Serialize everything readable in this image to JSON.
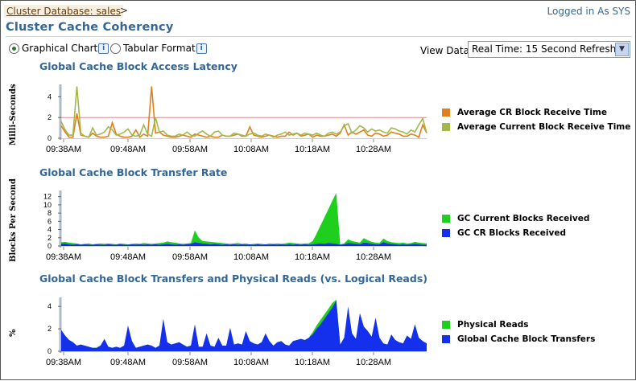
{
  "breadcrumb": "Cluster Database: sales",
  "breadcrumb_sep": ">",
  "logged_in": "Logged in As SYS",
  "page_title": "Cluster Cache Coherency",
  "view_mode": {
    "graphical_label": "Graphical Chart",
    "tabular_label": "Tabular Format",
    "selected": "graphical"
  },
  "view_data": {
    "label": "View Data",
    "value": "Real Time: 15 Second Refresh"
  },
  "colors": {
    "orange": "#e07f1c",
    "olive": "#a2b84a",
    "green": "#1ecf1e",
    "blue": "#1430ec",
    "ref_line": "#e08a8a"
  },
  "x_ticks": [
    "09:38AM",
    "09:48AM",
    "09:58AM",
    "10:08AM",
    "10:18AM",
    "10:28AM"
  ],
  "chart_data": [
    {
      "type": "line",
      "title": "Global Cache Block Access Latency",
      "ylabel": "Milli-Seconds",
      "yticks": [
        0,
        2,
        4
      ],
      "ylim": [
        0,
        5.2
      ],
      "reference_line": 2,
      "legend": "right",
      "series": [
        {
          "name": "Average CR Block Receive Time",
          "color": "orange",
          "values": [
            1.2,
            0.6,
            0.1,
            0.1,
            2.4,
            0.3,
            0.2,
            0.1,
            0.5,
            0.2,
            0.1,
            0.1,
            0.2,
            1.5,
            0.4,
            0.2,
            0.1,
            0.1,
            0.2,
            0.8,
            0.1,
            0.4,
            0.2,
            5.0,
            0.5,
            0.6,
            0.3,
            0.2,
            0.1,
            0.1,
            0.2,
            0.3,
            0.2,
            0.1,
            0.4,
            0.3,
            0.2,
            0.1,
            0.2,
            0.1,
            0.1,
            0.3,
            0.2,
            0.2,
            0.3,
            0.4,
            0.2,
            0.2,
            1.1,
            0.3,
            0.2,
            0.1,
            0.2,
            0.3,
            0.2,
            0.1,
            0.2,
            0.2,
            0.6,
            0.3,
            0.5,
            0.2,
            0.3,
            0.4,
            0.1,
            0.3,
            0.2,
            0.2,
            0.3,
            0.4,
            0.2,
            0.5,
            1.3,
            0.3,
            0.6,
            0.4,
            0.6,
            0.8,
            0.3,
            0.2,
            0.5,
            0.4,
            0.2,
            0.3,
            0.6,
            0.5,
            0.4,
            0.2,
            0.2,
            0.4,
            0.3,
            0.1,
            1.3,
            0.5
          ]
        },
        {
          "name": "Average Current Block Receive Time",
          "color": "olive",
          "values": [
            1.6,
            0.8,
            0.3,
            0.3,
            5.0,
            0.5,
            0.2,
            0.1,
            1.0,
            0.3,
            0.4,
            0.6,
            1.1,
            0.8,
            0.3,
            0.4,
            0.6,
            0.9,
            0.3,
            0.2,
            0.3,
            1.3,
            0.4,
            0.2,
            2.0,
            0.6,
            0.7,
            0.3,
            0.2,
            0.2,
            0.4,
            0.3,
            0.6,
            0.3,
            0.2,
            0.5,
            0.7,
            0.4,
            0.2,
            0.6,
            0.7,
            0.3,
            0.2,
            0.2,
            0.5,
            0.4,
            0.3,
            0.2,
            0.4,
            0.5,
            0.3,
            0.2,
            0.4,
            0.3,
            0.1,
            0.3,
            0.4,
            0.6,
            0.3,
            0.4,
            0.5,
            0.3,
            0.5,
            0.4,
            0.3,
            0.5,
            0.3,
            0.2,
            0.5,
            0.6,
            0.4,
            0.6,
            1.2,
            1.4,
            0.5,
            0.8,
            1.2,
            1.0,
            0.6,
            0.9,
            0.7,
            0.8,
            0.6,
            0.5,
            1.0,
            0.9,
            0.7,
            0.6,
            0.4,
            0.8,
            0.6,
            1.3,
            1.9,
            0.5
          ]
        }
      ]
    },
    {
      "type": "area",
      "title": "Global Cache Block Transfer Rate",
      "ylabel": "Blocks Per Second",
      "yticks": [
        0,
        2,
        4,
        6,
        8,
        10,
        12
      ],
      "ylim": [
        0,
        13.5
      ],
      "legend": "right",
      "series": [
        {
          "name": "GC Current Blocks Received",
          "color": "green",
          "values": [
            0.9,
            1.0,
            0.8,
            0.7,
            0.6,
            0.4,
            0.5,
            0.6,
            0.4,
            0.5,
            0.6,
            0.5,
            0.6,
            0.5,
            0.4,
            0.6,
            0.5,
            0.4,
            0.5,
            0.6,
            0.5,
            0.7,
            0.6,
            0.5,
            0.6,
            0.7,
            0.8,
            1.1,
            0.9,
            0.8,
            0.6,
            0.5,
            0.6,
            0.7,
            3.8,
            2.0,
            1.2,
            1.1,
            1.0,
            0.9,
            0.8,
            0.7,
            0.6,
            0.5,
            0.6,
            0.7,
            0.5,
            0.6,
            0.4,
            0.5,
            0.6,
            0.5,
            0.4,
            0.6,
            0.5,
            0.6,
            0.5,
            0.6,
            0.8,
            0.7,
            0.6,
            0.5,
            0.6,
            0.6,
            1.2,
            3.0,
            5.0,
            7.0,
            9.0,
            11.0,
            12.9,
            0.4,
            0.6,
            1.6,
            1.2,
            1.0,
            0.8,
            1.9,
            1.4,
            1.0,
            0.8,
            0.7,
            1.8,
            1.2,
            0.9,
            0.8,
            0.7,
            0.8,
            0.6,
            0.7,
            1.0,
            0.8,
            0.7,
            0.6
          ]
        },
        {
          "name": "GC CR Blocks Received",
          "color": "blue",
          "values": [
            0.5,
            0.6,
            0.4,
            0.3,
            0.4,
            0.3,
            0.4,
            0.3,
            0.3,
            0.4,
            0.3,
            0.3,
            0.4,
            0.3,
            0.3,
            0.4,
            0.3,
            0.3,
            0.4,
            0.3,
            0.4,
            0.3,
            0.4,
            0.3,
            0.4,
            0.3,
            0.4,
            0.5,
            0.4,
            0.3,
            0.4,
            0.3,
            0.4,
            0.5,
            0.9,
            0.7,
            0.6,
            0.5,
            0.4,
            0.5,
            0.4,
            0.3,
            0.4,
            0.3,
            0.4,
            0.3,
            0.4,
            0.3,
            0.4,
            0.3,
            0.4,
            0.3,
            0.4,
            0.3,
            0.4,
            0.3,
            0.4,
            0.3,
            0.4,
            0.3,
            0.4,
            0.3,
            0.4,
            0.3,
            0.4,
            0.5,
            0.6,
            0.5,
            0.7,
            0.6,
            0.5,
            0.3,
            0.4,
            0.7,
            0.6,
            0.5,
            0.4,
            0.8,
            0.7,
            0.5,
            0.4,
            0.4,
            0.9,
            0.6,
            0.5,
            0.4,
            0.3,
            0.4,
            0.3,
            0.4,
            0.5,
            0.4,
            0.3,
            0.3
          ]
        }
      ]
    },
    {
      "type": "area",
      "title": "Global Cache Block Transfers and Physical Reads (vs. Logical Reads)",
      "ylabel": "%",
      "yticks": [
        0,
        2,
        4
      ],
      "ylim": [
        0,
        4.8
      ],
      "legend": "right",
      "series": [
        {
          "name": "Physical Reads",
          "color": "green",
          "values": [
            1.9,
            1.4,
            1.0,
            0.8,
            0.5,
            0.6,
            0.5,
            0.4,
            0.3,
            0.3,
            0.5,
            0.7,
            0.4,
            0.3,
            0.4,
            0.3,
            0.5,
            1.2,
            0.9,
            0.3,
            0.4,
            0.5,
            0.6,
            0.5,
            0.3,
            0.5,
            1.0,
            0.8,
            0.6,
            0.7,
            0.8,
            0.6,
            0.4,
            0.5,
            0.6,
            0.4,
            0.4,
            0.6,
            0.5,
            0.4,
            0.6,
            0.5,
            0.5,
            0.7,
            0.6,
            0.7,
            0.6,
            0.8,
            0.9,
            0.7,
            0.6,
            0.8,
            1.2,
            0.9,
            0.5,
            0.8,
            0.9,
            0.6,
            0.5,
            0.9,
            1.0,
            1.1,
            1.0,
            1.2,
            1.7,
            2.3,
            2.8,
            3.3,
            3.8,
            4.3,
            4.6,
            0.6,
            1.2,
            3.4,
            1.6,
            1.1,
            3.0,
            2.2,
            1.8,
            1.3,
            2.8,
            1.2,
            0.7,
            0.6,
            1.5,
            1.0,
            0.8,
            0.7,
            1.4,
            1.1,
            2.4,
            1.2,
            0.9,
            0.7
          ]
        },
        {
          "name": "Global Cache Block Transfers",
          "color": "blue",
          "values": [
            1.9,
            1.4,
            1.0,
            0.8,
            0.5,
            0.6,
            0.5,
            0.4,
            0.3,
            0.3,
            0.5,
            1.1,
            0.4,
            0.3,
            0.4,
            0.3,
            0.5,
            2.3,
            0.9,
            0.3,
            0.4,
            0.5,
            0.6,
            0.5,
            0.3,
            0.5,
            2.9,
            0.8,
            0.6,
            0.7,
            0.8,
            0.6,
            0.4,
            0.5,
            2.4,
            0.4,
            0.4,
            1.6,
            0.5,
            0.4,
            1.2,
            0.5,
            0.5,
            2.1,
            0.6,
            0.7,
            0.6,
            1.8,
            0.9,
            0.7,
            0.6,
            0.8,
            1.6,
            0.9,
            0.5,
            0.8,
            0.9,
            0.6,
            0.5,
            0.9,
            1.0,
            1.1,
            1.0,
            1.2,
            1.5,
            2.0,
            2.4,
            2.9,
            3.4,
            3.9,
            4.5,
            0.6,
            1.2,
            4.0,
            1.6,
            1.1,
            3.4,
            2.2,
            1.8,
            1.3,
            3.0,
            1.2,
            0.7,
            0.6,
            1.5,
            1.0,
            0.8,
            0.7,
            1.4,
            1.1,
            2.4,
            1.2,
            0.9,
            0.7
          ]
        }
      ]
    }
  ]
}
